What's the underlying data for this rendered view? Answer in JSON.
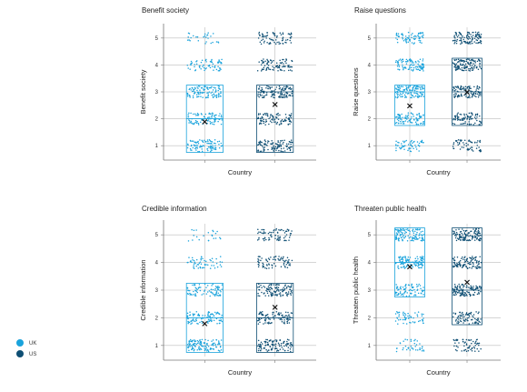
{
  "colors": {
    "uk": "#1aa3dc",
    "us": "#0f4f74",
    "grid": "#bcbcbc",
    "axis": "#777777",
    "mean": "#111111"
  },
  "legend": {
    "items": [
      {
        "label": "UK",
        "color": "#1aa3dc"
      },
      {
        "label": "US",
        "color": "#0f4f74"
      }
    ]
  },
  "chart_data": [
    {
      "type": "scatter",
      "title": "Benefit society",
      "xlabel": "Country",
      "ylabel": "Benefit society",
      "yticks": [
        "1",
        "2",
        "3",
        "4",
        "5"
      ],
      "ylim": [
        0.6,
        5.4
      ],
      "grid": true,
      "series": [
        {
          "name": "UK",
          "counts": [
            95,
            90,
            110,
            65,
            28
          ],
          "box": {
            "q1": 1,
            "median": 2,
            "q3": 3
          },
          "mean": 1.9
        },
        {
          "name": "US",
          "counts": [
            110,
            100,
            120,
            90,
            75
          ],
          "box": {
            "q1": 1,
            "median": 3,
            "q3": 3
          },
          "mean": 2.55
        }
      ]
    },
    {
      "type": "scatter",
      "title": "Raise questions",
      "xlabel": "Country",
      "ylabel": "Raise questions",
      "yticks": [
        "1",
        "2",
        "3",
        "4",
        "5"
      ],
      "ylim": [
        0.6,
        5.4
      ],
      "grid": true,
      "series": [
        {
          "name": "UK",
          "counts": [
            60,
            90,
            120,
            100,
            70
          ],
          "box": {
            "q1": 2,
            "median": 3,
            "q3": 3
          },
          "mean": 2.5
        },
        {
          "name": "US",
          "counts": [
            60,
            85,
            110,
            120,
            110
          ],
          "box": {
            "q1": 2,
            "median": 3,
            "q3": 4
          },
          "mean": 3.0
        }
      ]
    },
    {
      "type": "scatter",
      "title": "Credible information",
      "xlabel": "Country",
      "ylabel": "Credible information",
      "yticks": [
        "1",
        "2",
        "3",
        "4",
        "5"
      ],
      "ylim": [
        0.6,
        5.4
      ],
      "grid": true,
      "series": [
        {
          "name": "UK",
          "counts": [
            120,
            100,
            85,
            55,
            22
          ],
          "box": {
            "q1": 1,
            "median": 2,
            "q3": 3
          },
          "mean": 1.8
        },
        {
          "name": "US",
          "counts": [
            110,
            95,
            110,
            75,
            75
          ],
          "box": {
            "q1": 1,
            "median": 2,
            "q3": 3
          },
          "mean": 2.4
        }
      ]
    },
    {
      "type": "scatter",
      "title": "Threaten public health",
      "xlabel": "Country",
      "ylabel": "Threaten public health",
      "yticks": [
        "1",
        "2",
        "3",
        "4",
        "5"
      ],
      "ylim": [
        0.6,
        5.4
      ],
      "grid": true,
      "series": [
        {
          "name": "UK",
          "counts": [
            40,
            55,
            85,
            110,
            120
          ],
          "box": {
            "q1": 3,
            "median": 4,
            "q3": 5
          },
          "mean": 3.85
        },
        {
          "name": "US",
          "counts": [
            65,
            80,
            115,
            110,
            120
          ],
          "box": {
            "q1": 2,
            "median": 3,
            "q3": 5
          },
          "mean": 3.3
        }
      ]
    }
  ]
}
